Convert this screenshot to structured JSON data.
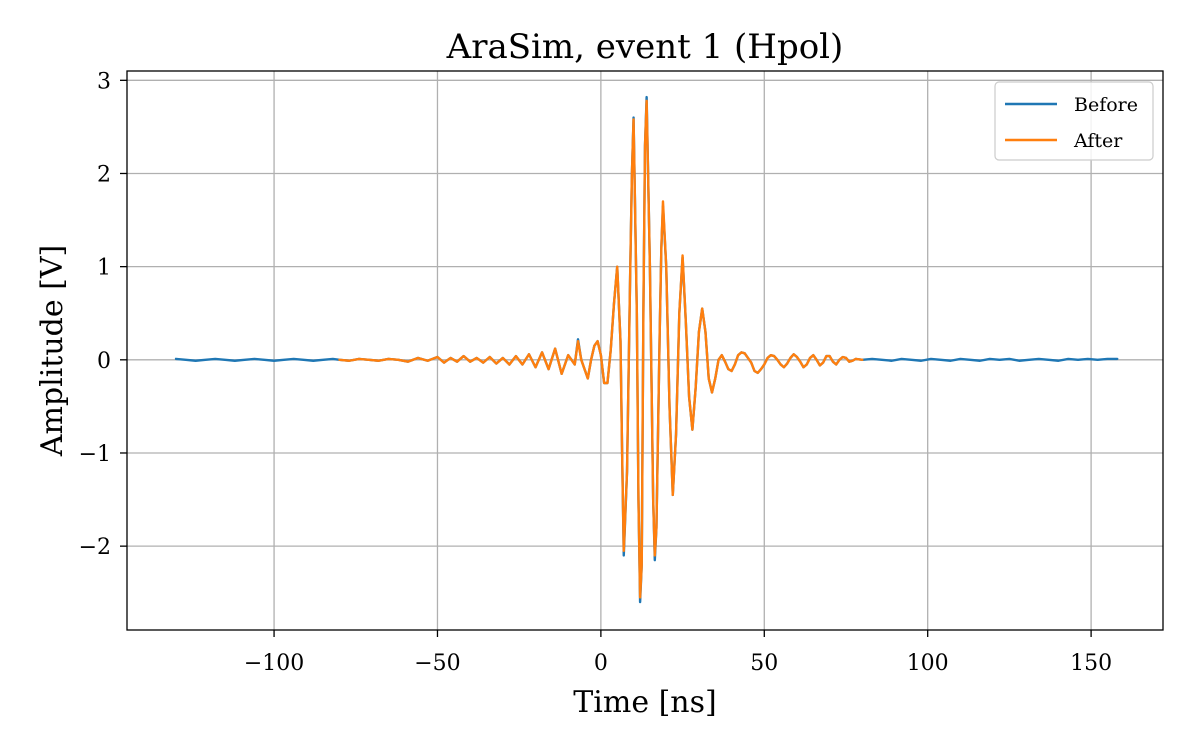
{
  "chart_data": {
    "type": "line",
    "title": "AraSim, event 1 (Hpol)",
    "xlabel": "Time [ns]",
    "ylabel": "Amplitude [V]",
    "xlim": [
      -145,
      172
    ],
    "ylim": [
      -2.9,
      3.1
    ],
    "xticks": [
      -100,
      -50,
      0,
      50,
      100,
      150
    ],
    "xtick_labels": [
      "−100",
      "−50",
      "0",
      "50",
      "100",
      "150"
    ],
    "yticks": [
      -2,
      -1,
      0,
      1,
      2,
      3
    ],
    "ytick_labels": [
      "−2",
      "−1",
      "0",
      "1",
      "2",
      "3"
    ],
    "grid": true,
    "legend_position": "top-right",
    "series": [
      {
        "name": "Before",
        "color": "#1f77b4",
        "points": [
          [
            -130,
            0.01
          ],
          [
            -127,
            0.0
          ],
          [
            -124,
            -0.01
          ],
          [
            -121,
            0.0
          ],
          [
            -118,
            0.01
          ],
          [
            -115,
            0.0
          ],
          [
            -112,
            -0.01
          ],
          [
            -109,
            0.0
          ],
          [
            -106,
            0.01
          ],
          [
            -103,
            0.0
          ],
          [
            -100,
            -0.01
          ],
          [
            -97,
            0.0
          ],
          [
            -94,
            0.01
          ],
          [
            -91,
            0.0
          ],
          [
            -88,
            -0.01
          ],
          [
            -85,
            0.0
          ],
          [
            -82,
            0.01
          ],
          [
            -80,
            0.0
          ],
          [
            -77,
            -0.01
          ],
          [
            -74,
            0.01
          ],
          [
            -71,
            0.0
          ],
          [
            -68,
            -0.01
          ],
          [
            -65,
            0.01
          ],
          [
            -62,
            0.0
          ],
          [
            -59,
            -0.02
          ],
          [
            -56,
            0.02
          ],
          [
            -53,
            -0.01
          ],
          [
            -50,
            0.03
          ],
          [
            -48,
            -0.03
          ],
          [
            -46,
            0.02
          ],
          [
            -44,
            -0.02
          ],
          [
            -42,
            0.04
          ],
          [
            -40,
            -0.02
          ],
          [
            -38,
            0.02
          ],
          [
            -36,
            -0.03
          ],
          [
            -34,
            0.03
          ],
          [
            -32,
            -0.04
          ],
          [
            -30,
            0.02
          ],
          [
            -28,
            -0.05
          ],
          [
            -26,
            0.04
          ],
          [
            -24,
            -0.05
          ],
          [
            -22,
            0.06
          ],
          [
            -20,
            -0.08
          ],
          [
            -18,
            0.08
          ],
          [
            -16,
            -0.1
          ],
          [
            -14,
            0.12
          ],
          [
            -12,
            -0.15
          ],
          [
            -10,
            0.05
          ],
          [
            -8,
            -0.05
          ],
          [
            -7,
            0.22
          ],
          [
            -6,
            0.0
          ],
          [
            -5,
            -0.1
          ],
          [
            -4,
            -0.2
          ],
          [
            -3,
            0.0
          ],
          [
            -2,
            0.15
          ],
          [
            -1,
            0.2
          ],
          [
            0,
            0.05
          ],
          [
            1,
            -0.25
          ],
          [
            2,
            -0.25
          ],
          [
            3,
            0.1
          ],
          [
            4,
            0.6
          ],
          [
            5,
            1.0
          ],
          [
            6,
            0.2
          ],
          [
            6.5,
            -1.0
          ],
          [
            7,
            -2.1
          ],
          [
            8,
            -1.2
          ],
          [
            9,
            1.0
          ],
          [
            9.5,
            2.0
          ],
          [
            10,
            2.6
          ],
          [
            11,
            0.5
          ],
          [
            11.5,
            -1.5
          ],
          [
            12,
            -2.6
          ],
          [
            12.5,
            -2.2
          ],
          [
            13,
            0.5
          ],
          [
            13.5,
            2.3
          ],
          [
            14,
            2.82
          ],
          [
            15,
            1.0
          ],
          [
            16,
            -1.5
          ],
          [
            16.5,
            -2.15
          ],
          [
            17,
            -1.8
          ],
          [
            18,
            0.3
          ],
          [
            18.5,
            1.2
          ],
          [
            19,
            1.65
          ],
          [
            20,
            1.0
          ],
          [
            21,
            -0.5
          ],
          [
            22,
            -1.45
          ],
          [
            23,
            -0.8
          ],
          [
            24,
            0.5
          ],
          [
            25,
            1.1
          ],
          [
            26,
            0.4
          ],
          [
            27,
            -0.4
          ],
          [
            28,
            -0.75
          ],
          [
            29,
            -0.3
          ],
          [
            30,
            0.3
          ],
          [
            31,
            0.55
          ],
          [
            32,
            0.3
          ],
          [
            33,
            -0.2
          ],
          [
            34,
            -0.35
          ],
          [
            35,
            -0.2
          ],
          [
            36,
            0.0
          ],
          [
            37,
            0.05
          ],
          [
            38,
            -0.02
          ],
          [
            39,
            -0.1
          ],
          [
            40,
            -0.12
          ],
          [
            41,
            -0.05
          ],
          [
            42,
            0.05
          ],
          [
            43,
            0.08
          ],
          [
            44,
            0.07
          ],
          [
            45,
            0.02
          ],
          [
            46,
            -0.03
          ],
          [
            47,
            -0.12
          ],
          [
            48,
            -0.14
          ],
          [
            49,
            -0.1
          ],
          [
            50,
            -0.05
          ],
          [
            51,
            0.02
          ],
          [
            52,
            0.05
          ],
          [
            53,
            0.04
          ],
          [
            54,
            0.0
          ],
          [
            55,
            -0.05
          ],
          [
            56,
            -0.08
          ],
          [
            57,
            -0.04
          ],
          [
            58,
            0.02
          ],
          [
            59,
            0.06
          ],
          [
            60,
            0.03
          ],
          [
            61,
            -0.02
          ],
          [
            62,
            -0.08
          ],
          [
            63,
            -0.05
          ],
          [
            64,
            0.02
          ],
          [
            65,
            0.05
          ],
          [
            66,
            0.0
          ],
          [
            67,
            -0.06
          ],
          [
            68,
            -0.03
          ],
          [
            69,
            0.04
          ],
          [
            70,
            0.04
          ],
          [
            71,
            -0.02
          ],
          [
            72,
            -0.05
          ],
          [
            73,
            0.0
          ],
          [
            74,
            0.03
          ],
          [
            75,
            0.02
          ],
          [
            76,
            -0.02
          ],
          [
            77,
            -0.01
          ],
          [
            78,
            0.01
          ],
          [
            80,
            0.0
          ],
          [
            83,
            0.01
          ],
          [
            86,
            0.0
          ],
          [
            89,
            -0.01
          ],
          [
            92,
            0.01
          ],
          [
            95,
            0.0
          ],
          [
            98,
            -0.01
          ],
          [
            101,
            0.01
          ],
          [
            104,
            0.0
          ],
          [
            107,
            -0.01
          ],
          [
            110,
            0.01
          ],
          [
            113,
            0.0
          ],
          [
            116,
            -0.01
          ],
          [
            119,
            0.01
          ],
          [
            122,
            0.0
          ],
          [
            125,
            0.01
          ],
          [
            128,
            -0.01
          ],
          [
            131,
            0.0
          ],
          [
            134,
            0.01
          ],
          [
            137,
            0.0
          ],
          [
            140,
            -0.01
          ],
          [
            143,
            0.01
          ],
          [
            146,
            0.0
          ],
          [
            149,
            0.01
          ],
          [
            152,
            0.0
          ],
          [
            155,
            0.01
          ],
          [
            158,
            0.01
          ]
        ]
      },
      {
        "name": "After",
        "color": "#ff7f0e",
        "points": [
          [
            -80,
            0.0
          ],
          [
            -77,
            -0.01
          ],
          [
            -74,
            0.01
          ],
          [
            -71,
            0.0
          ],
          [
            -68,
            -0.01
          ],
          [
            -65,
            0.01
          ],
          [
            -62,
            0.0
          ],
          [
            -59,
            -0.02
          ],
          [
            -56,
            0.02
          ],
          [
            -53,
            -0.01
          ],
          [
            -50,
            0.03
          ],
          [
            -48,
            -0.03
          ],
          [
            -46,
            0.02
          ],
          [
            -44,
            -0.02
          ],
          [
            -42,
            0.04
          ],
          [
            -40,
            -0.02
          ],
          [
            -38,
            0.02
          ],
          [
            -36,
            -0.03
          ],
          [
            -34,
            0.03
          ],
          [
            -32,
            -0.04
          ],
          [
            -30,
            0.02
          ],
          [
            -28,
            -0.05
          ],
          [
            -26,
            0.04
          ],
          [
            -24,
            -0.05
          ],
          [
            -22,
            0.06
          ],
          [
            -20,
            -0.08
          ],
          [
            -18,
            0.08
          ],
          [
            -16,
            -0.1
          ],
          [
            -14,
            0.12
          ],
          [
            -12,
            -0.15
          ],
          [
            -10,
            0.05
          ],
          [
            -8,
            -0.05
          ],
          [
            -7,
            0.2
          ],
          [
            -6,
            0.0
          ],
          [
            -5,
            -0.1
          ],
          [
            -4,
            -0.2
          ],
          [
            -3,
            0.0
          ],
          [
            -2,
            0.15
          ],
          [
            -1,
            0.2
          ],
          [
            0,
            0.05
          ],
          [
            1,
            -0.25
          ],
          [
            2,
            -0.25
          ],
          [
            3,
            0.1
          ],
          [
            4,
            0.6
          ],
          [
            5,
            1.0
          ],
          [
            6,
            0.2
          ],
          [
            6.5,
            -1.0
          ],
          [
            7,
            -2.05
          ],
          [
            8,
            -1.2
          ],
          [
            9,
            1.0
          ],
          [
            9.5,
            2.0
          ],
          [
            10,
            2.58
          ],
          [
            11,
            0.5
          ],
          [
            11.5,
            -1.5
          ],
          [
            12,
            -2.55
          ],
          [
            12.5,
            -2.2
          ],
          [
            13,
            0.5
          ],
          [
            13.5,
            2.3
          ],
          [
            14,
            2.78
          ],
          [
            15,
            1.0
          ],
          [
            16,
            -1.5
          ],
          [
            16.5,
            -2.1
          ],
          [
            17,
            -1.8
          ],
          [
            18,
            0.3
          ],
          [
            18.5,
            1.2
          ],
          [
            19,
            1.7
          ],
          [
            20,
            1.0
          ],
          [
            21,
            -0.5
          ],
          [
            22,
            -1.45
          ],
          [
            23,
            -0.8
          ],
          [
            24,
            0.5
          ],
          [
            25,
            1.12
          ],
          [
            26,
            0.4
          ],
          [
            27,
            -0.4
          ],
          [
            28,
            -0.75
          ],
          [
            29,
            -0.3
          ],
          [
            30,
            0.3
          ],
          [
            31,
            0.55
          ],
          [
            32,
            0.3
          ],
          [
            33,
            -0.2
          ],
          [
            34,
            -0.35
          ],
          [
            35,
            -0.2
          ],
          [
            36,
            0.0
          ],
          [
            37,
            0.05
          ],
          [
            38,
            -0.02
          ],
          [
            39,
            -0.1
          ],
          [
            40,
            -0.12
          ],
          [
            41,
            -0.05
          ],
          [
            42,
            0.05
          ],
          [
            43,
            0.08
          ],
          [
            44,
            0.07
          ],
          [
            45,
            0.02
          ],
          [
            46,
            -0.03
          ],
          [
            47,
            -0.12
          ],
          [
            48,
            -0.14
          ],
          [
            49,
            -0.1
          ],
          [
            50,
            -0.05
          ],
          [
            51,
            0.02
          ],
          [
            52,
            0.05
          ],
          [
            53,
            0.04
          ],
          [
            54,
            0.0
          ],
          [
            55,
            -0.05
          ],
          [
            56,
            -0.08
          ],
          [
            57,
            -0.04
          ],
          [
            58,
            0.02
          ],
          [
            59,
            0.06
          ],
          [
            60,
            0.03
          ],
          [
            61,
            -0.02
          ],
          [
            62,
            -0.08
          ],
          [
            63,
            -0.05
          ],
          [
            64,
            0.02
          ],
          [
            65,
            0.05
          ],
          [
            66,
            0.0
          ],
          [
            67,
            -0.06
          ],
          [
            68,
            -0.03
          ],
          [
            69,
            0.04
          ],
          [
            70,
            0.04
          ],
          [
            71,
            -0.02
          ],
          [
            72,
            -0.05
          ],
          [
            73,
            0.0
          ],
          [
            74,
            0.03
          ],
          [
            75,
            0.02
          ],
          [
            76,
            -0.02
          ],
          [
            77,
            -0.01
          ],
          [
            78,
            0.01
          ],
          [
            80,
            0.0
          ]
        ]
      }
    ]
  }
}
